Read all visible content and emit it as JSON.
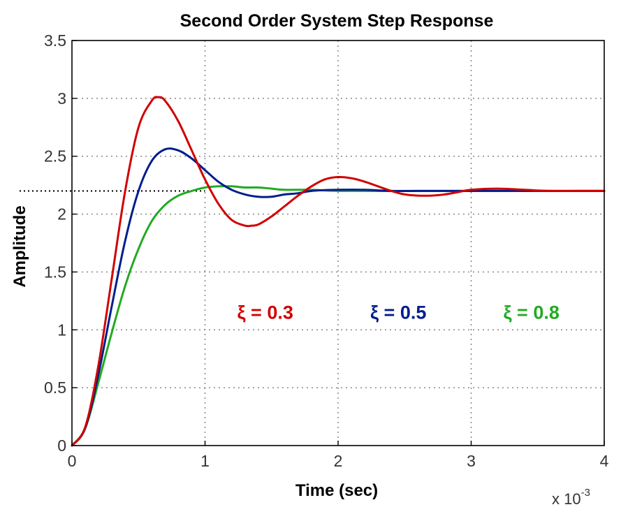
{
  "chart_data": {
    "type": "line",
    "title": "Second Order System Step Response",
    "xlabel": "Time (sec)",
    "ylabel": "Amplitude",
    "x_multiplier_label": "x 10",
    "x_multiplier_exponent": "-3",
    "xlim": [
      0,
      4
    ],
    "ylim": [
      0,
      3.5
    ],
    "xticks": [
      "0",
      "1",
      "2",
      "3",
      "4"
    ],
    "yticks": [
      "0",
      "0.5",
      "1",
      "1.5",
      "2",
      "2.5",
      "3",
      "3.5"
    ],
    "grid": true,
    "reference_level": 2.2,
    "series": [
      {
        "name": "ξ = 0.3",
        "color": "#d10000",
        "x": [
          0,
          0.1,
          0.2,
          0.3,
          0.4,
          0.5,
          0.6,
          0.65,
          0.7,
          0.8,
          0.9,
          1.0,
          1.1,
          1.2,
          1.3,
          1.35,
          1.4,
          1.5,
          1.6,
          1.7,
          1.8,
          1.9,
          2.0,
          2.1,
          2.2,
          2.3,
          2.4,
          2.5,
          2.6,
          2.7,
          2.8,
          2.9,
          3.0,
          3.2,
          3.4,
          3.6,
          3.8,
          4.0
        ],
        "y": [
          0,
          0.16,
          0.7,
          1.45,
          2.2,
          2.75,
          2.98,
          3.01,
          2.98,
          2.8,
          2.55,
          2.3,
          2.09,
          1.95,
          1.9,
          1.9,
          1.91,
          1.98,
          2.07,
          2.16,
          2.24,
          2.3,
          2.32,
          2.31,
          2.28,
          2.24,
          2.2,
          2.17,
          2.16,
          2.16,
          2.17,
          2.19,
          2.21,
          2.22,
          2.21,
          2.2,
          2.2,
          2.2
        ]
      },
      {
        "name": "ξ = 0.5",
        "color": "#001e8c",
        "x": [
          0,
          0.1,
          0.2,
          0.3,
          0.4,
          0.5,
          0.6,
          0.7,
          0.8,
          0.9,
          1.0,
          1.1,
          1.2,
          1.3,
          1.4,
          1.5,
          1.6,
          1.7,
          1.8,
          2.0,
          2.2,
          2.4,
          2.6,
          2.8,
          3.0,
          3.5,
          4.0
        ],
        "y": [
          0,
          0.15,
          0.62,
          1.21,
          1.77,
          2.2,
          2.46,
          2.56,
          2.55,
          2.48,
          2.38,
          2.28,
          2.21,
          2.17,
          2.15,
          2.15,
          2.17,
          2.18,
          2.2,
          2.21,
          2.21,
          2.2,
          2.2,
          2.2,
          2.2,
          2.2,
          2.2
        ]
      },
      {
        "name": "ξ = 0.8",
        "color": "#22aa22",
        "x": [
          0,
          0.1,
          0.2,
          0.3,
          0.4,
          0.5,
          0.6,
          0.7,
          0.8,
          0.9,
          1.0,
          1.1,
          1.2,
          1.3,
          1.4,
          1.5,
          1.6,
          1.8,
          2.0,
          2.5,
          3.0,
          3.5,
          4.0
        ],
        "y": [
          0,
          0.15,
          0.55,
          0.98,
          1.38,
          1.7,
          1.94,
          2.08,
          2.16,
          2.2,
          2.23,
          2.24,
          2.24,
          2.23,
          2.23,
          2.22,
          2.21,
          2.21,
          2.2,
          2.2,
          2.2,
          2.2,
          2.2
        ]
      }
    ],
    "annotations": [
      {
        "text": "ξ = 0.3",
        "color": "#d10000",
        "x": 1.4,
        "y": 1.15
      },
      {
        "text": "ξ = 0.5",
        "color": "#001e8c",
        "x": 2.4,
        "y": 1.15
      },
      {
        "text": "ξ = 0.8",
        "color": "#22aa22",
        "x": 3.4,
        "y": 1.15
      }
    ]
  }
}
